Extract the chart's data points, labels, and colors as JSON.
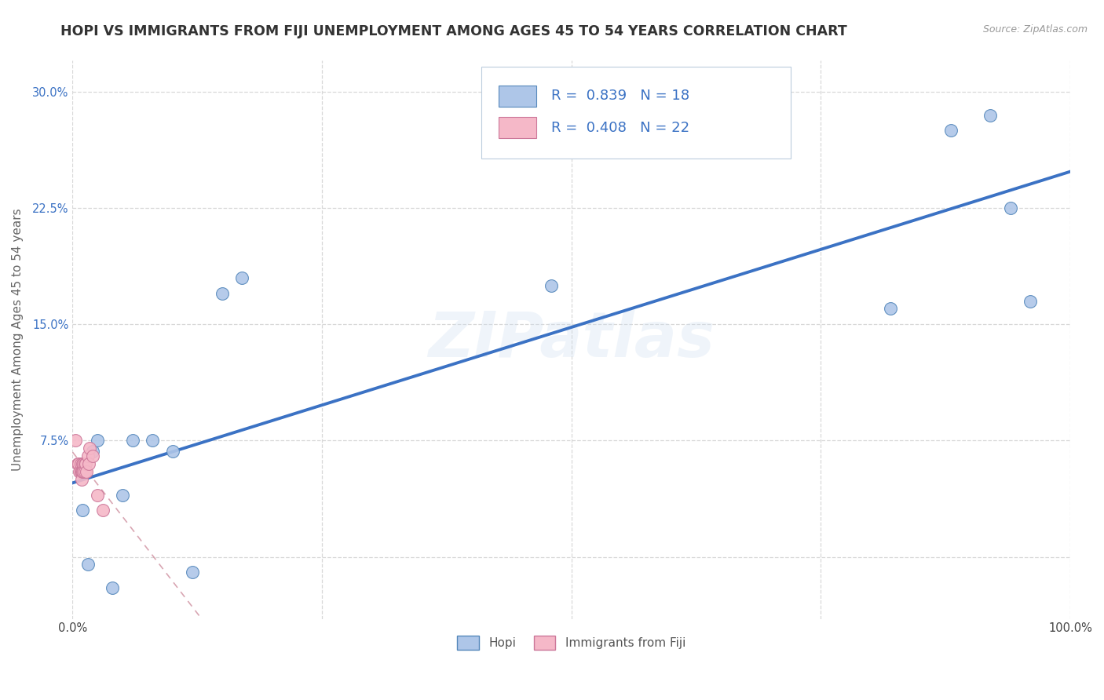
{
  "title": "HOPI VS IMMIGRANTS FROM FIJI UNEMPLOYMENT AMONG AGES 45 TO 54 YEARS CORRELATION CHART",
  "source_text": "Source: ZipAtlas.com",
  "ylabel": "Unemployment Among Ages 45 to 54 years",
  "xlim": [
    0.0,
    1.0
  ],
  "ylim": [
    -0.04,
    0.32
  ],
  "xticks": [
    0.0,
    0.25,
    0.5,
    0.75,
    1.0
  ],
  "xtick_labels": [
    "0.0%",
    "",
    "",
    "",
    "100.0%"
  ],
  "yticks": [
    0.0,
    0.075,
    0.15,
    0.225,
    0.3
  ],
  "ytick_labels": [
    "",
    "7.5%",
    "15.0%",
    "22.5%",
    "30.0%"
  ],
  "hopi_x": [
    0.01,
    0.015,
    0.02,
    0.025,
    0.04,
    0.05,
    0.06,
    0.08,
    0.1,
    0.12,
    0.17,
    0.48,
    0.82,
    0.88,
    0.92,
    0.94,
    0.96,
    0.15
  ],
  "hopi_y": [
    0.03,
    -0.005,
    0.068,
    0.075,
    -0.02,
    0.04,
    0.075,
    0.075,
    0.068,
    -0.01,
    0.18,
    0.175,
    0.16,
    0.275,
    0.285,
    0.225,
    0.165,
    0.17
  ],
  "fiji_x": [
    0.003,
    0.005,
    0.006,
    0.007,
    0.008,
    0.008,
    0.009,
    0.009,
    0.01,
    0.01,
    0.011,
    0.011,
    0.012,
    0.012,
    0.013,
    0.014,
    0.015,
    0.016,
    0.017,
    0.02,
    0.025,
    0.03
  ],
  "fiji_y": [
    0.075,
    0.06,
    0.06,
    0.055,
    0.06,
    0.055,
    0.055,
    0.05,
    0.06,
    0.055,
    0.06,
    0.055,
    0.06,
    0.055,
    0.06,
    0.055,
    0.065,
    0.06,
    0.07,
    0.065,
    0.04,
    0.03
  ],
  "hopi_color": "#aec6e8",
  "hopi_edge_color": "#5588bb",
  "fiji_color": "#f5b8c8",
  "fiji_edge_color": "#cc7799",
  "hopi_line_color": "#3b72c4",
  "fiji_line_color": "#cc8899",
  "R_hopi": 0.839,
  "N_hopi": 18,
  "R_fiji": 0.408,
  "N_fiji": 22,
  "watermark": "ZIPatlas",
  "background_color": "#ffffff",
  "grid_color": "#d8d8d8",
  "title_fontsize": 12.5,
  "axis_fontsize": 11,
  "tick_fontsize": 10.5,
  "legend_fontsize": 13
}
